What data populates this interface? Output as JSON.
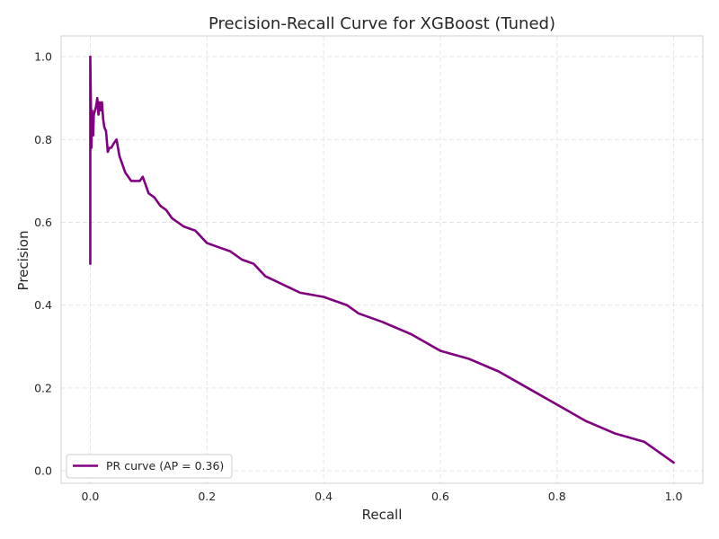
{
  "chart_data": {
    "type": "line",
    "title": "Precision-Recall Curve for XGBoost (Tuned)",
    "xlabel": "Recall",
    "ylabel": "Precision",
    "xlim": [
      -0.05,
      1.05
    ],
    "ylim": [
      -0.03,
      1.05
    ],
    "grid": true,
    "legend_position": "lower-left",
    "x_ticks": [
      {
        "value": 0.0,
        "label": "0.0"
      },
      {
        "value": 0.2,
        "label": "0.2"
      },
      {
        "value": 0.4,
        "label": "0.4"
      },
      {
        "value": 0.6,
        "label": "0.6"
      },
      {
        "value": 0.8,
        "label": "0.8"
      },
      {
        "value": 1.0,
        "label": "1.0"
      }
    ],
    "y_ticks": [
      {
        "value": 0.0,
        "label": "0.0"
      },
      {
        "value": 0.2,
        "label": "0.2"
      },
      {
        "value": 0.4,
        "label": "0.4"
      },
      {
        "value": 0.6,
        "label": "0.6"
      },
      {
        "value": 0.8,
        "label": "0.8"
      },
      {
        "value": 1.0,
        "label": "1.0"
      }
    ],
    "series": [
      {
        "name": "PR curve (AP = 0.36)",
        "color": "#800080",
        "x": [
          0.0,
          0.0,
          0.002,
          0.003,
          0.005,
          0.006,
          0.008,
          0.01,
          0.012,
          0.014,
          0.016,
          0.018,
          0.02,
          0.022,
          0.024,
          0.027,
          0.03,
          0.033,
          0.036,
          0.04,
          0.045,
          0.05,
          0.055,
          0.06,
          0.065,
          0.07,
          0.075,
          0.08,
          0.085,
          0.09,
          0.095,
          0.1,
          0.11,
          0.12,
          0.13,
          0.14,
          0.15,
          0.16,
          0.18,
          0.2,
          0.22,
          0.24,
          0.26,
          0.28,
          0.3,
          0.33,
          0.36,
          0.4,
          0.44,
          0.46,
          0.5,
          0.55,
          0.6,
          0.65,
          0.7,
          0.75,
          0.8,
          0.85,
          0.9,
          0.95,
          1.0
        ],
        "y": [
          0.5,
          1.0,
          0.78,
          0.87,
          0.81,
          0.86,
          0.87,
          0.88,
          0.9,
          0.86,
          0.89,
          0.87,
          0.89,
          0.85,
          0.83,
          0.82,
          0.77,
          0.78,
          0.78,
          0.79,
          0.8,
          0.76,
          0.74,
          0.72,
          0.71,
          0.7,
          0.7,
          0.7,
          0.7,
          0.71,
          0.69,
          0.67,
          0.66,
          0.64,
          0.63,
          0.61,
          0.6,
          0.59,
          0.58,
          0.55,
          0.54,
          0.53,
          0.51,
          0.5,
          0.47,
          0.45,
          0.43,
          0.42,
          0.4,
          0.38,
          0.36,
          0.33,
          0.29,
          0.27,
          0.24,
          0.2,
          0.16,
          0.12,
          0.09,
          0.07,
          0.02
        ]
      }
    ]
  }
}
